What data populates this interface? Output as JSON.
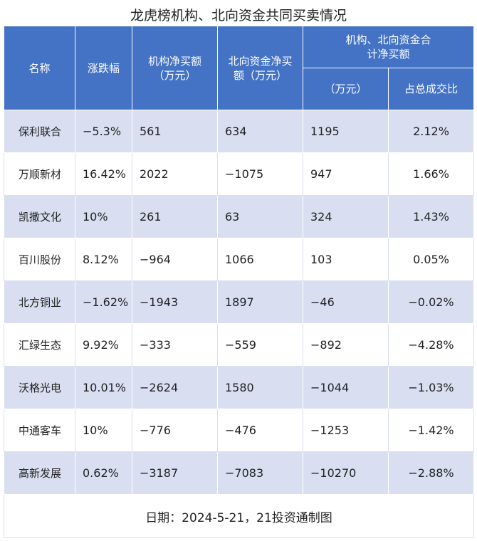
{
  "title": "龙虎榜机构、北向资金共同买卖情况",
  "headers": {
    "name": "名称",
    "change": "涨跌幅",
    "inst": "机构净买额（万元）",
    "north": "北向资金净买额（万元）",
    "combined_group": "机构、北向资金合计净买额",
    "combined_amount": "（万元）",
    "share": "占总成交比"
  },
  "rows": [
    {
      "name": "保利联合",
      "change": "−5.3%",
      "inst": "561",
      "north": "634",
      "combined": "1195",
      "share": "2.12%"
    },
    {
      "name": "万顺新材",
      "change": "16.42%",
      "inst": "2022",
      "north": "−1075",
      "combined": "947",
      "share": "1.66%"
    },
    {
      "name": "凯撒文化",
      "change": "10%",
      "inst": "261",
      "north": "63",
      "combined": "324",
      "share": "1.43%"
    },
    {
      "name": "百川股份",
      "change": "8.12%",
      "inst": "−964",
      "north": "1066",
      "combined": "103",
      "share": "0.05%"
    },
    {
      "name": "北方铜业",
      "change": "−1.62%",
      "inst": "−1943",
      "north": "1897",
      "combined": "−46",
      "share": "−0.02%"
    },
    {
      "name": "汇绿生态",
      "change": "9.92%",
      "inst": "−333",
      "north": "−559",
      "combined": "−892",
      "share": "−4.28%"
    },
    {
      "name": "沃格光电",
      "change": "10.01%",
      "inst": "−2624",
      "north": "1580",
      "combined": "−1044",
      "share": "−1.03%"
    },
    {
      "name": "中通客车",
      "change": "10%",
      "inst": "−776",
      "north": "−476",
      "combined": "−1253",
      "share": "−1.42%"
    },
    {
      "name": "高新发展",
      "change": "0.62%",
      "inst": "−3187",
      "north": "−7083",
      "combined": "−10270",
      "share": "−2.88%"
    }
  ],
  "footer": "日期：2024-5-21，21投资通制图",
  "colors": {
    "header_bg": "#4472c4",
    "stripe_bg": "#d9dff1",
    "text": "#222222"
  }
}
